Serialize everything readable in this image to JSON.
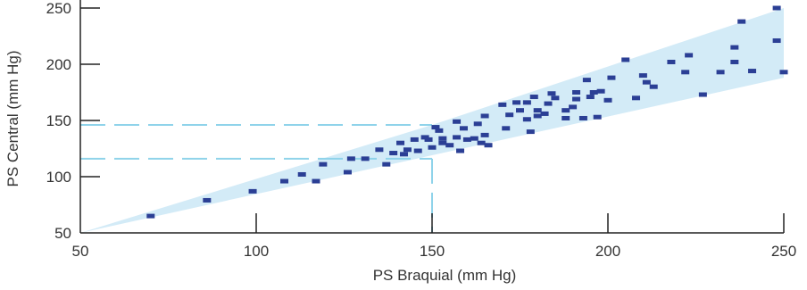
{
  "colors": {
    "band_fill": "#d3ebf7",
    "point": "#2b3f95",
    "reference_line": "#8fd3ea",
    "axis": "#222222",
    "text": "#333333"
  },
  "chart_data": {
    "type": "scatter",
    "xlabel": "PS Braquial (mm Hg)",
    "ylabel": "PS Central (mm Hg)",
    "xlim": [
      50,
      250
    ],
    "ylim": [
      50,
      250
    ],
    "xticks": [
      50,
      100,
      150,
      200,
      250
    ],
    "yticks": [
      50,
      100,
      150,
      200,
      250
    ],
    "grid": false,
    "band": {
      "lower": [
        [
          50,
          50
        ],
        [
          250,
          188
        ]
      ],
      "upper": [
        [
          50,
          50
        ],
        [
          150,
          146
        ],
        [
          250,
          250
        ]
      ]
    },
    "reference_lines": {
      "horizontal": [
        146,
        116
      ],
      "vertical": 150
    },
    "points": [
      [
        70,
        65
      ],
      [
        86,
        79
      ],
      [
        99,
        87
      ],
      [
        108,
        96
      ],
      [
        113,
        102
      ],
      [
        117,
        96
      ],
      [
        119,
        111
      ],
      [
        126,
        104
      ],
      [
        127,
        116
      ],
      [
        131,
        116
      ],
      [
        135,
        124
      ],
      [
        137,
        111
      ],
      [
        139,
        121
      ],
      [
        141,
        130
      ],
      [
        142,
        120
      ],
      [
        143,
        124
      ],
      [
        145,
        133
      ],
      [
        146,
        123
      ],
      [
        148,
        135
      ],
      [
        149,
        133
      ],
      [
        150,
        126
      ],
      [
        151,
        144
      ],
      [
        152,
        141
      ],
      [
        153,
        130
      ],
      [
        153,
        134
      ],
      [
        155,
        128
      ],
      [
        157,
        149
      ],
      [
        157,
        135
      ],
      [
        158,
        123
      ],
      [
        159,
        143
      ],
      [
        160,
        133
      ],
      [
        162,
        134
      ],
      [
        163,
        147
      ],
      [
        164,
        130
      ],
      [
        165,
        137
      ],
      [
        165,
        154
      ],
      [
        166,
        128
      ],
      [
        170,
        164
      ],
      [
        171,
        143
      ],
      [
        172,
        155
      ],
      [
        174,
        166
      ],
      [
        175,
        159
      ],
      [
        177,
        151
      ],
      [
        177,
        166
      ],
      [
        178,
        140
      ],
      [
        179,
        171
      ],
      [
        180,
        154
      ],
      [
        180,
        159
      ],
      [
        182,
        156
      ],
      [
        183,
        165
      ],
      [
        184,
        174
      ],
      [
        185,
        170
      ],
      [
        188,
        152
      ],
      [
        188,
        159
      ],
      [
        190,
        162
      ],
      [
        191,
        175
      ],
      [
        191,
        169
      ],
      [
        193,
        152
      ],
      [
        194,
        186
      ],
      [
        195,
        171
      ],
      [
        196,
        175
      ],
      [
        197,
        153
      ],
      [
        198,
        176
      ],
      [
        200,
        168
      ],
      [
        201,
        188
      ],
      [
        205,
        204
      ],
      [
        208,
        170
      ],
      [
        210,
        190
      ],
      [
        211,
        184
      ],
      [
        213,
        180
      ],
      [
        218,
        202
      ],
      [
        222,
        193
      ],
      [
        223,
        208
      ],
      [
        227,
        173
      ],
      [
        232,
        193
      ],
      [
        236,
        215
      ],
      [
        236,
        202
      ],
      [
        238,
        238
      ],
      [
        241,
        194
      ],
      [
        248,
        221
      ],
      [
        250,
        193
      ],
      [
        248,
        250
      ]
    ]
  }
}
